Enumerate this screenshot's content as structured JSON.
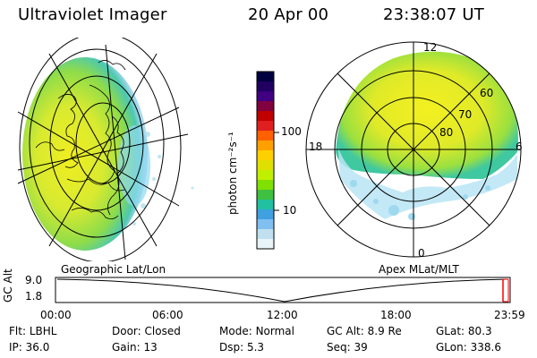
{
  "header": {
    "title": "Ultraviolet Imager",
    "date": "20 Apr 00",
    "time": "23:38:07 UT"
  },
  "panels": {
    "left_label": "Geographic Lat/Lon",
    "right_label": "Apex MLat/MLT"
  },
  "colorbar": {
    "unit_label": "photon cm⁻²s⁻¹",
    "ticks": [
      "100",
      "10"
    ],
    "colors": [
      "#000040",
      "#200060",
      "#400080",
      "#800040",
      "#c00000",
      "#e02020",
      "#ff6000",
      "#ffa000",
      "#ffd000",
      "#e0e000",
      "#c0f000",
      "#80e000",
      "#40c040",
      "#20c0a0",
      "#40a0e0",
      "#80c0f0",
      "#c0e0f0",
      "#e8f4f8"
    ]
  },
  "polar": {
    "mlt_labels": [
      "12",
      "18",
      "6",
      "0"
    ],
    "mlat_labels": [
      "60",
      "70",
      "80"
    ]
  },
  "timeline": {
    "axis_title": "GC Alt",
    "y_ticks": [
      "9.0",
      "1.8"
    ],
    "x_ticks": [
      "00:00",
      "06:00",
      "12:00",
      "18:00",
      "23:59"
    ],
    "marker_color": "#ff0000"
  },
  "info": [
    [
      {
        "label": "Flt:",
        "value": "LBHL"
      },
      {
        "label": "Door:",
        "value": "Closed"
      },
      {
        "label": "Mode:",
        "value": "Normal"
      },
      {
        "label": "GC Alt:",
        "value": "8.9 Re"
      },
      {
        "label": "GLat:",
        "value": "80.3"
      }
    ],
    [
      {
        "label": "IP:",
        "value": "36.0"
      },
      {
        "label": "Gain:",
        "value": "13"
      },
      {
        "label": "Dsp:",
        "value": "5.3"
      },
      {
        "label": "Seq:",
        "value": "39"
      },
      {
        "label": "GLon:",
        "value": "338.6"
      }
    ]
  ]
}
